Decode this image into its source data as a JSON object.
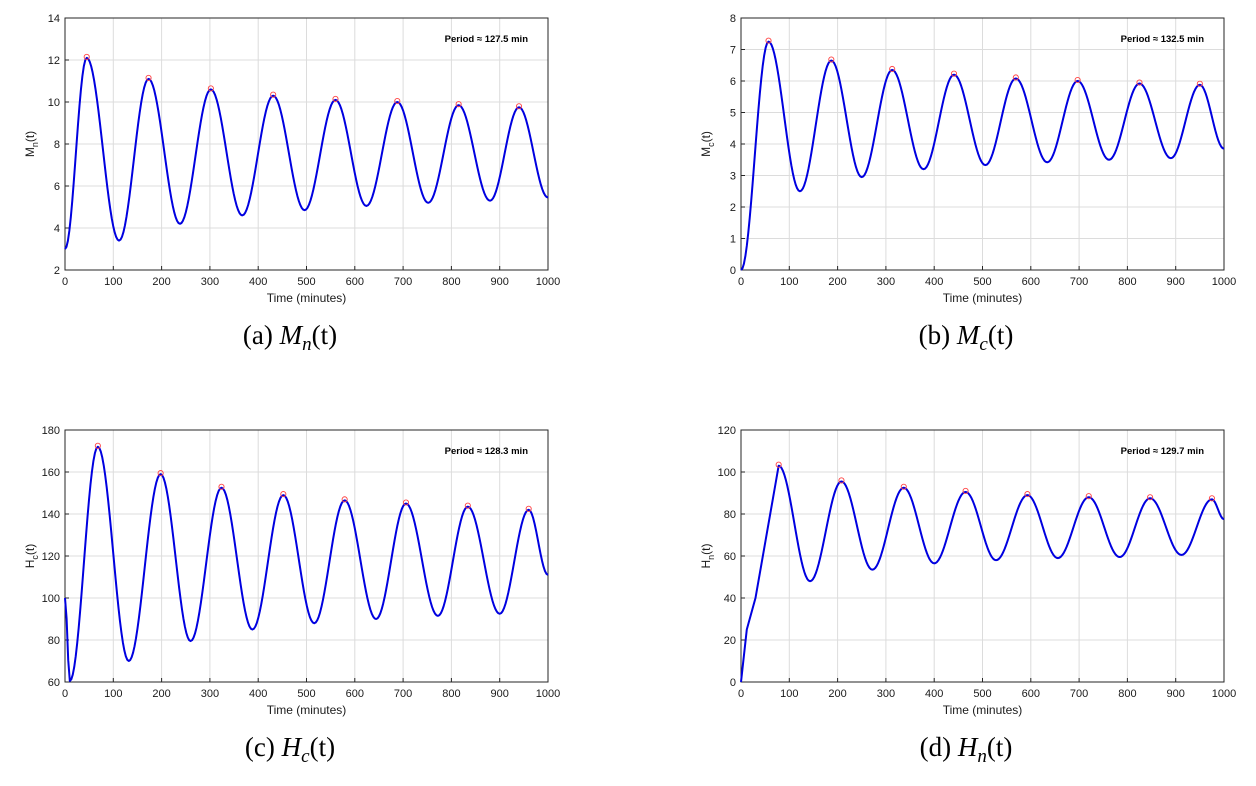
{
  "chart_data": [
    {
      "type": "line",
      "panel_caption": {
        "prefix": "(a) ",
        "fn": "M",
        "sub": "n",
        "suffix": "(t)"
      },
      "xlabel": "Time (minutes)",
      "ylabel": "M_n(t)",
      "ylabel_main": "M",
      "ylabel_sub": "n",
      "ylabel_suffix": "(t)",
      "xlim": [
        0,
        1000
      ],
      "ylim": [
        2,
        14
      ],
      "xticks": [
        0,
        100,
        200,
        300,
        400,
        500,
        600,
        700,
        800,
        900,
        1000
      ],
      "yticks": [
        2,
        4,
        6,
        8,
        10,
        12,
        14
      ],
      "grid": true,
      "annotation": "Period ≈ 127.5 min",
      "annotation_position": "top-right",
      "line_color": "#0000e0",
      "marker_color": "#ff4444",
      "peaks": [
        [
          45,
          12.1
        ],
        [
          173,
          11.1
        ],
        [
          302,
          10.6
        ],
        [
          431,
          10.3
        ],
        [
          560,
          10.1
        ],
        [
          688,
          10.0
        ],
        [
          815,
          9.85
        ],
        [
          940,
          9.75
        ]
      ],
      "troughs": [
        [
          0,
          3.0
        ],
        [
          112,
          3.4
        ],
        [
          238,
          4.2
        ],
        [
          367,
          4.6
        ],
        [
          496,
          4.85
        ],
        [
          624,
          5.05
        ],
        [
          752,
          5.2
        ],
        [
          880,
          5.3
        ],
        [
          1000,
          5.45
        ]
      ]
    },
    {
      "type": "line",
      "panel_caption": {
        "prefix": "(b) ",
        "fn": "M",
        "sub": "c",
        "suffix": "(t)"
      },
      "xlabel": "Time (minutes)",
      "ylabel": "M_c(t)",
      "ylabel_main": "M",
      "ylabel_sub": "c",
      "ylabel_suffix": "(t)",
      "xlim": [
        0,
        1000
      ],
      "ylim": [
        0,
        8
      ],
      "xticks": [
        0,
        100,
        200,
        300,
        400,
        500,
        600,
        700,
        800,
        900,
        1000
      ],
      "yticks": [
        0,
        1,
        2,
        3,
        4,
        5,
        6,
        7,
        8
      ],
      "grid": true,
      "annotation": "Period ≈ 132.5 min",
      "annotation_position": "top-right",
      "line_color": "#0000e0",
      "marker_color": "#ff4444",
      "peaks": [
        [
          57,
          7.25
        ],
        [
          187,
          6.65
        ],
        [
          313,
          6.35
        ],
        [
          441,
          6.2
        ],
        [
          569,
          6.08
        ],
        [
          697,
          6.0
        ],
        [
          825,
          5.92
        ],
        [
          950,
          5.88
        ]
      ],
      "troughs": [
        [
          0,
          0.0
        ],
        [
          122,
          2.5
        ],
        [
          250,
          2.95
        ],
        [
          378,
          3.2
        ],
        [
          506,
          3.33
        ],
        [
          634,
          3.42
        ],
        [
          762,
          3.5
        ],
        [
          890,
          3.55
        ],
        [
          1000,
          3.85
        ]
      ]
    },
    {
      "type": "line",
      "panel_caption": {
        "prefix": "(c) ",
        "fn": "H",
        "sub": "c",
        "suffix": "(t)"
      },
      "xlabel": "Time (minutes)",
      "ylabel": "H_c(t)",
      "ylabel_main": "H",
      "ylabel_sub": "c",
      "ylabel_suffix": "(t)",
      "xlim": [
        0,
        1000
      ],
      "ylim": [
        60,
        180
      ],
      "xticks": [
        0,
        100,
        200,
        300,
        400,
        500,
        600,
        700,
        800,
        900,
        1000
      ],
      "yticks": [
        60,
        80,
        100,
        120,
        140,
        160,
        180
      ],
      "grid": true,
      "annotation": "Period ≈ 128.3 min",
      "annotation_position": "top-right",
      "line_color": "#0000e0",
      "marker_color": "#ff4444",
      "peaks": [
        [
          68,
          172
        ],
        [
          198,
          159
        ],
        [
          324,
          152.5
        ],
        [
          452,
          149
        ],
        [
          579,
          146.5
        ],
        [
          706,
          145
        ],
        [
          834,
          143.5
        ],
        [
          960,
          142
        ]
      ],
      "troughs": [
        [
          0,
          100
        ],
        [
          10,
          60.5
        ],
        [
          132,
          70
        ],
        [
          260,
          79.5
        ],
        [
          388,
          85
        ],
        [
          516,
          88
        ],
        [
          644,
          90
        ],
        [
          772,
          91.5
        ],
        [
          900,
          92.5
        ],
        [
          1000,
          111
        ]
      ]
    },
    {
      "type": "line",
      "panel_caption": {
        "prefix": "(d) ",
        "fn": "H",
        "sub": "n",
        "suffix": "(t)"
      },
      "xlabel": "Time (minutes)",
      "ylabel": "H_n(t)",
      "ylabel_main": "H",
      "ylabel_sub": "n",
      "ylabel_suffix": "(t)",
      "xlim": [
        0,
        1000
      ],
      "ylim": [
        0,
        120
      ],
      "xticks": [
        0,
        100,
        200,
        300,
        400,
        500,
        600,
        700,
        800,
        900,
        1000
      ],
      "yticks": [
        0,
        20,
        40,
        60,
        80,
        100,
        120
      ],
      "grid": true,
      "annotation": "Period ≈ 129.7 min",
      "annotation_position": "top-right",
      "line_color": "#0000e0",
      "marker_color": "#ff4444",
      "pre_points": [
        [
          0,
          0
        ],
        [
          12,
          25
        ],
        [
          30,
          40
        ]
      ],
      "peaks": [
        [
          78,
          103
        ],
        [
          208,
          95.5
        ],
        [
          337,
          92.5
        ],
        [
          465,
          90.5
        ],
        [
          593,
          89
        ],
        [
          720,
          88
        ],
        [
          847,
          87.5
        ],
        [
          975,
          87
        ]
      ],
      "troughs": [
        [
          143,
          48
        ],
        [
          272,
          53.5
        ],
        [
          400,
          56.5
        ],
        [
          528,
          58
        ],
        [
          656,
          59
        ],
        [
          784,
          59.5
        ],
        [
          912,
          60.5
        ],
        [
          1000,
          77.5
        ]
      ]
    }
  ]
}
